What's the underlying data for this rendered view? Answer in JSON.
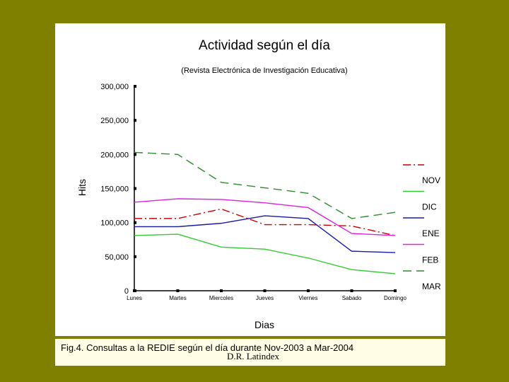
{
  "chart_data": {
    "type": "line",
    "title": "Actividad según el día",
    "subtitle": "(Revista Electrónica de Investigación Educativa)",
    "xlabel": "Dias",
    "ylabel": "Hits",
    "categories": [
      "Lunes",
      "Martes",
      "Miercoles",
      "Jueves",
      "Viernes",
      "Sabado",
      "Domingo"
    ],
    "yticks": [
      "0",
      "50,000",
      "100,000",
      "150,000",
      "200,000",
      "250,000",
      "300,000"
    ],
    "ylim": [
      0,
      300000
    ],
    "grid": false,
    "legend_position": "right",
    "series": [
      {
        "name": "NOV",
        "color": "#cc0000",
        "dash": "dash-dot",
        "values": [
          106000,
          106000,
          120000,
          97000,
          97000,
          95000,
          81000
        ]
      },
      {
        "name": "DIC",
        "color": "#33cc33",
        "dash": "solid",
        "values": [
          81000,
          83000,
          64000,
          61000,
          48000,
          31000,
          25000
        ]
      },
      {
        "name": "ENE",
        "color": "#1a1aaa",
        "dash": "solid",
        "values": [
          94000,
          94000,
          99000,
          110000,
          106000,
          58000,
          56000
        ]
      },
      {
        "name": "FEB",
        "color": "#e020e0",
        "dash": "solid",
        "values": [
          130000,
          135000,
          134000,
          129000,
          122000,
          84000,
          81000
        ]
      },
      {
        "name": "MAR",
        "color": "#2e8b2e",
        "dash": "dashed",
        "values": [
          203000,
          200000,
          159000,
          151000,
          143000,
          106000,
          115000
        ]
      }
    ]
  },
  "caption": {
    "text": "Fig.4.  Consultas a la REDIE según el día durante Nov-2003 a Mar-2004",
    "credit": "D.R. Latindex"
  }
}
